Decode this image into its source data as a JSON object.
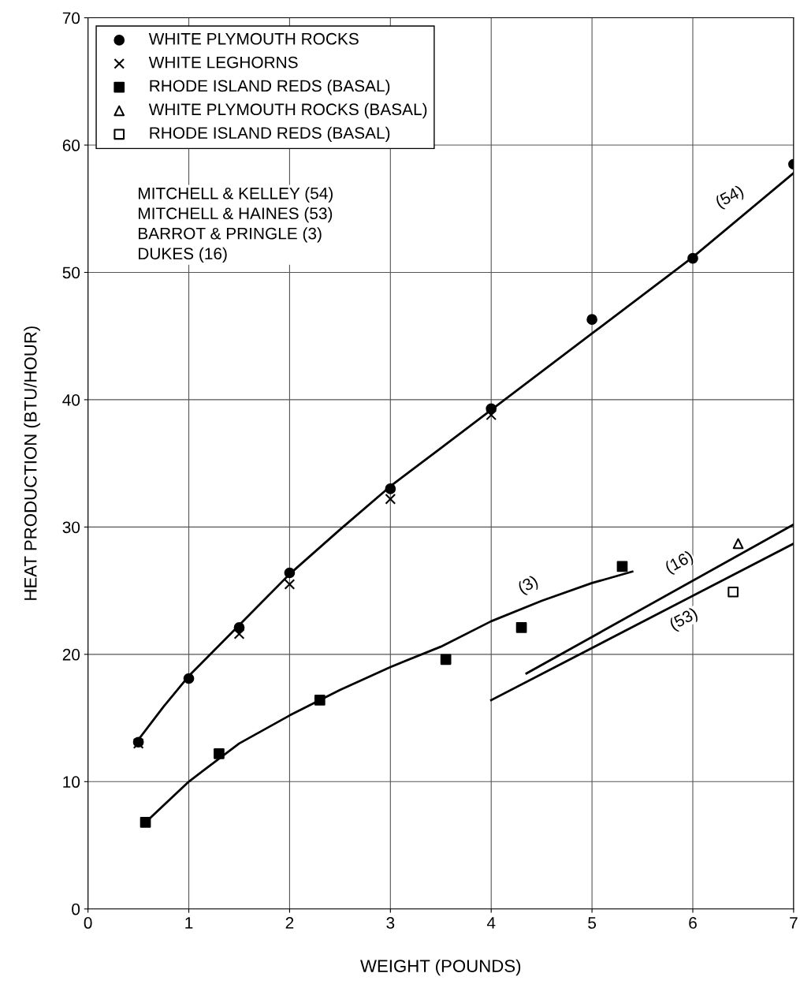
{
  "chart_data": {
    "type": "scatter",
    "xlabel": "WEIGHT (POUNDS)",
    "ylabel": "HEAT PRODUCTION (BTU/HOUR)",
    "xlim": [
      0,
      7
    ],
    "ylim": [
      0,
      70
    ],
    "xticks": [
      0,
      1,
      2,
      3,
      4,
      5,
      6,
      7
    ],
    "yticks": [
      0,
      10,
      20,
      30,
      40,
      50,
      60,
      70
    ],
    "grid": true,
    "legend": "top left",
    "series": [
      {
        "name": "WHITE PLYMOUTH ROCKS",
        "marker": "circle",
        "color": "#000000",
        "x": [
          0.5,
          1.0,
          1.5,
          2.0,
          3.0,
          4.0,
          5.0,
          6.0,
          7.0
        ],
        "values": [
          13.1,
          18.1,
          22.1,
          26.4,
          33.0,
          39.3,
          46.3,
          51.1,
          58.5
        ]
      },
      {
        "name": "WHITE LEGHORNS",
        "marker": "cross",
        "color": "#000000",
        "x": [
          0.5,
          1.5,
          2.0,
          3.0,
          4.0
        ],
        "values": [
          13.0,
          21.6,
          25.5,
          32.2,
          38.8
        ]
      },
      {
        "name": "RHODE ISLAND REDS (BASAL)",
        "marker": "square",
        "color": "#000000",
        "x": [
          0.57,
          1.3,
          2.3,
          3.55,
          4.3,
          5.3
        ],
        "values": [
          6.8,
          12.2,
          16.4,
          19.6,
          22.1,
          26.9
        ]
      },
      {
        "name": "WHITE PLYMOUTH ROCKS (BASAL)",
        "marker": "triangle",
        "color": "#ffffff",
        "x": [
          6.45
        ],
        "values": [
          28.7
        ]
      },
      {
        "name": "RHODE ISLAND REDS (BASAL)",
        "marker": "square",
        "color": "#ffffff",
        "x": [
          6.4
        ],
        "values": [
          24.9
        ]
      },
      {
        "type": "line",
        "color": "#000000",
        "x": [
          0.5,
          0.75,
          1,
          1.5,
          2,
          2.5,
          3,
          3.5,
          4,
          5,
          6,
          7
        ],
        "values": [
          13.3,
          15.9,
          18.3,
          22.3,
          26.3,
          29.8,
          33.2,
          36.2,
          39.2,
          45.2,
          51.2,
          57.8
        ]
      },
      {
        "type": "line",
        "color": "#000000",
        "x": [
          0.57,
          1,
          1.5,
          2,
          2.5,
          3,
          3.5,
          4,
          4.5,
          5,
          5.4
        ],
        "values": [
          6.8,
          10,
          13,
          15.2,
          17.2,
          19,
          20.6,
          22.6,
          24.2,
          25.6,
          26.5
        ]
      },
      {
        "type": "line",
        "color": "#000000",
        "x": [
          4.35,
          7
        ],
        "values": [
          18.5,
          30.2
        ]
      },
      {
        "type": "line",
        "color": "#000000",
        "x": [
          4.0,
          7
        ],
        "values": [
          16.4,
          28.7
        ]
      }
    ],
    "annotations": [
      {
        "text": "(54)",
        "x": 6.5,
        "y": 54.5
      },
      {
        "text": "(3)",
        "x": 4.5,
        "y": 24.2
      },
      {
        "text": "(16)",
        "x": 6,
        "y": 25.8
      },
      {
        "text": "(53)",
        "x": 6,
        "y": 24.6
      },
      "MITCHELL & KELLEY (54)\nMITCHELL & HAINES (53)\nBARROT & PRINGLE (3)\nDUKES (16)"
    ]
  }
}
